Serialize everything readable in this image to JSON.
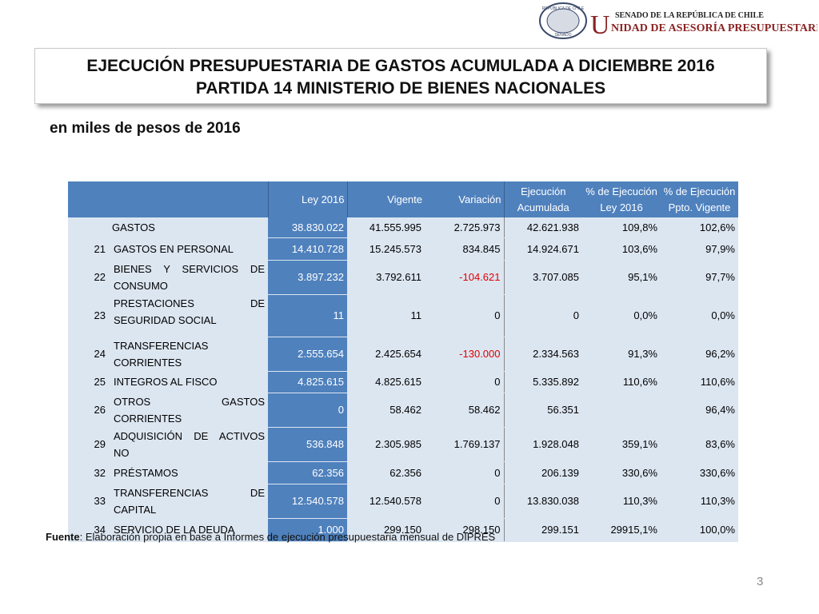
{
  "header": {
    "org_line1": "SENADO DE LA REPÚBLICA DE CHILE",
    "org_initial": "U",
    "org_line2": "NIDAD DE ASESORÍA PRESUPUESTARIA",
    "seal_text": "REPÚBLICA DE CHILE",
    "seal_sub": "SENADO"
  },
  "title": {
    "line1": "EJECUCIÓN PRESUPUESTARIA DE GASTOS ACUMULADA A DICIEMBRE 2016",
    "line2": "PARTIDA 14 MINISTERIO DE BIENES NACIONALES"
  },
  "subtitle": "en miles de pesos de 2016",
  "table": {
    "columns": [
      [
        "Ley 2016"
      ],
      [
        "Vigente"
      ],
      [
        "Variación"
      ],
      [
        "Ejecución",
        "Acumulada"
      ],
      [
        "% de Ejecución",
        "Ley 2016"
      ],
      [
        "% de Ejecución",
        "Ppto. Vigente"
      ]
    ],
    "rows": [
      {
        "code": null,
        "name": "GASTOS",
        "values": [
          "38.830.022",
          "41.555.995",
          "2.725.973",
          "42.621.938",
          "109,8%",
          "102,6%"
        ]
      },
      {
        "code": "21",
        "name": "GASTOS EN PERSONAL",
        "values": [
          "14.410.728",
          "15.245.573",
          "834.845",
          "14.924.671",
          "103,6%",
          "97,9%"
        ]
      },
      {
        "code": "22",
        "name": "BIENES Y SERVICIOS DE CONSUMO",
        "values": [
          "3.897.232",
          "3.792.611",
          "-104.621",
          "3.707.085",
          "95,1%",
          "97,7%"
        ]
      },
      {
        "code": "23",
        "name": "PRESTACIONES DE SEGURIDAD SOCIAL",
        "values": [
          "11",
          "11",
          "0",
          "0",
          "0,0%",
          "0,0%"
        ]
      },
      {
        "code": "24",
        "name": "TRANSFERENCIAS CORRIENTES",
        "values": [
          "2.555.654",
          "2.425.654",
          "-130.000",
          "2.334.563",
          "91,3%",
          "96,2%"
        ]
      },
      {
        "code": "25",
        "name": "INTEGROS AL FISCO",
        "values": [
          "4.825.615",
          "4.825.615",
          "0",
          "5.335.892",
          "110,6%",
          "110,6%"
        ]
      },
      {
        "code": "26",
        "name": "OTROS GASTOS CORRIENTES",
        "values": [
          "0",
          "58.462",
          "58.462",
          "56.351",
          null,
          "96,4%"
        ]
      },
      {
        "code": "29",
        "name": "ADQUISICIÓN DE ACTIVOS NO",
        "values": [
          "536.848",
          "2.305.985",
          "1.769.137",
          "1.928.048",
          "359,1%",
          "83,6%"
        ]
      },
      {
        "code": "32",
        "name": "PRÉSTAMOS",
        "values": [
          "62.356",
          "62.356",
          "0",
          "206.139",
          "330,6%",
          "330,6%"
        ]
      },
      {
        "code": "33",
        "name": "TRANSFERENCIAS DE CAPITAL",
        "values": [
          "12.540.578",
          "12.540.578",
          "0",
          "13.830.038",
          "110,3%",
          "110,3%"
        ]
      },
      {
        "code": "34",
        "name": "SERVICIO DE LA DEUDA",
        "values": [
          "1.000",
          "299.150",
          "298.150",
          "299.151",
          "29915,1%",
          "100,0%"
        ]
      }
    ]
  },
  "footer": {
    "source_label": "Fuente",
    "source_text": ": Elaboración propia en base  a Informes de ejecución presupuestaria mensual de DIPRES",
    "page": "3"
  }
}
